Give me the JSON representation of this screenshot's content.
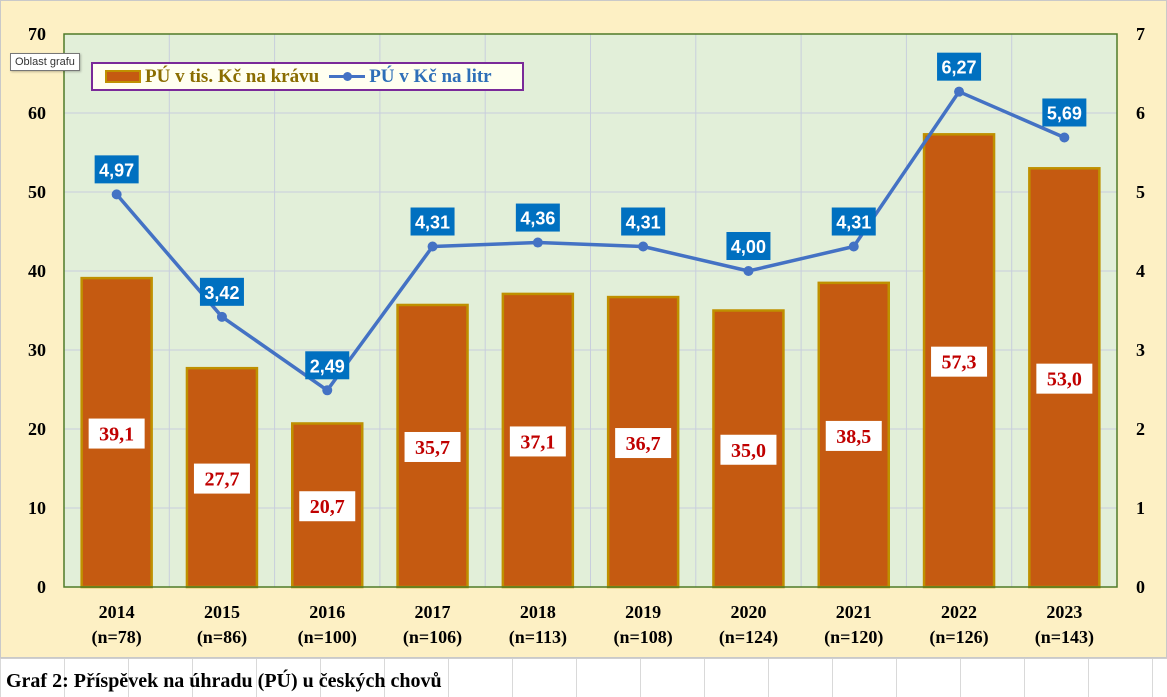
{
  "tooltip": "Oblast grafu",
  "caption": "Graf 2: Příspěvek na úhradu (PÚ) u českých chovů",
  "colors": {
    "plot_bg": "#e2efd9",
    "chart_bg": "#fdf0c4",
    "bar_fill": "#c55a11",
    "bar_border": "#bf9000",
    "line": "#4472c4",
    "line_label_bg": "#0070c0",
    "bar_label_text": "#c00000",
    "legend_border": "#7a2a99"
  },
  "chart_data": {
    "type": "bar",
    "categories": [
      "2014",
      "2015",
      "2016",
      "2017",
      "2018",
      "2019",
      "2020",
      "2021",
      "2022",
      "2023"
    ],
    "category_counts": [
      "(n=78)",
      "(n=86)",
      "(n=100)",
      "(n=106)",
      "(n=113)",
      "(n=108)",
      "(n=124)",
      "(n=120)",
      "(n=126)",
      "(n=143)"
    ],
    "series": [
      {
        "name": "PÚ v tis. Kč na krávu",
        "type": "bar",
        "axis": "left",
        "values": [
          39.1,
          27.7,
          20.7,
          35.7,
          37.1,
          36.7,
          35.0,
          38.5,
          57.3,
          53.0
        ],
        "labels": [
          "39,1",
          "27,7",
          "20,7",
          "35,7",
          "37,1",
          "36,7",
          "35,0",
          "38,5",
          "57,3",
          "53,0"
        ]
      },
      {
        "name": "PÚ v Kč na litr",
        "type": "line",
        "axis": "right",
        "values": [
          4.97,
          3.42,
          2.49,
          4.31,
          4.36,
          4.31,
          4.0,
          4.31,
          6.27,
          5.69
        ],
        "labels": [
          "4,97",
          "3,42",
          "2,49",
          "4,31",
          "4,36",
          "4,31",
          "4,00",
          "4,31",
          "6,27",
          "5,69"
        ]
      }
    ],
    "y_left": {
      "min": 0,
      "max": 70,
      "ticks": [
        "0",
        "10",
        "20",
        "30",
        "40",
        "50",
        "60",
        "70"
      ]
    },
    "y_right": {
      "min": 0,
      "max": 7,
      "ticks": [
        "0",
        "1",
        "2",
        "3",
        "4",
        "5",
        "6",
        "7"
      ]
    },
    "grid": true,
    "legend_position": "top-left"
  }
}
